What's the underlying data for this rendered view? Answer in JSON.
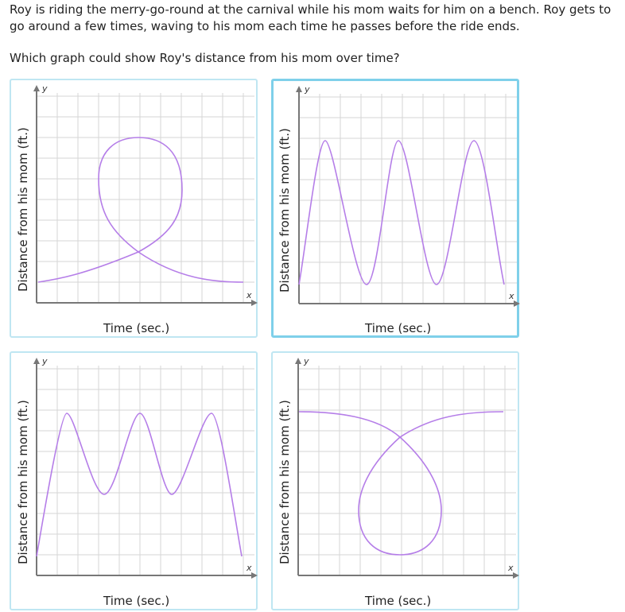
{
  "question": {
    "text": "Roy is riding the merry-go-round at the carnival while his mom waits for him on a bench. Roy gets to go around a few times, waving to his mom each time he passes before the ride ends.",
    "prompt": "Which graph could show Roy's distance from his mom over time?"
  },
  "choices": [
    {
      "id": "A",
      "y_axis_letter": "y",
      "x_axis_letter": "x",
      "y_label": "Distance from his mom (ft.)",
      "x_label": "Time (sec.)",
      "curve": "loop-up",
      "selected": false
    },
    {
      "id": "B",
      "y_axis_letter": "y",
      "x_axis_letter": "x",
      "y_label": "Distance from his mom (ft.)",
      "x_label": "Time (sec.)",
      "curve": "three-peaks",
      "selected": true
    },
    {
      "id": "C",
      "y_axis_letter": "y",
      "x_axis_letter": "x",
      "y_label": "Distance from his mom (ft.)",
      "x_label": "Time (sec.)",
      "curve": "m-shape",
      "selected": false
    },
    {
      "id": "D",
      "y_axis_letter": "y",
      "x_axis_letter": "x",
      "y_label": "Distance from his mom (ft.)",
      "x_label": "Time (sec.)",
      "curve": "loop-down",
      "selected": false
    }
  ],
  "colors": {
    "curve": "#b57ee8",
    "axis": "#777777",
    "grid": "#d6d6d6",
    "border": "#bfe6f2",
    "selected_border": "#7fd0ea"
  }
}
